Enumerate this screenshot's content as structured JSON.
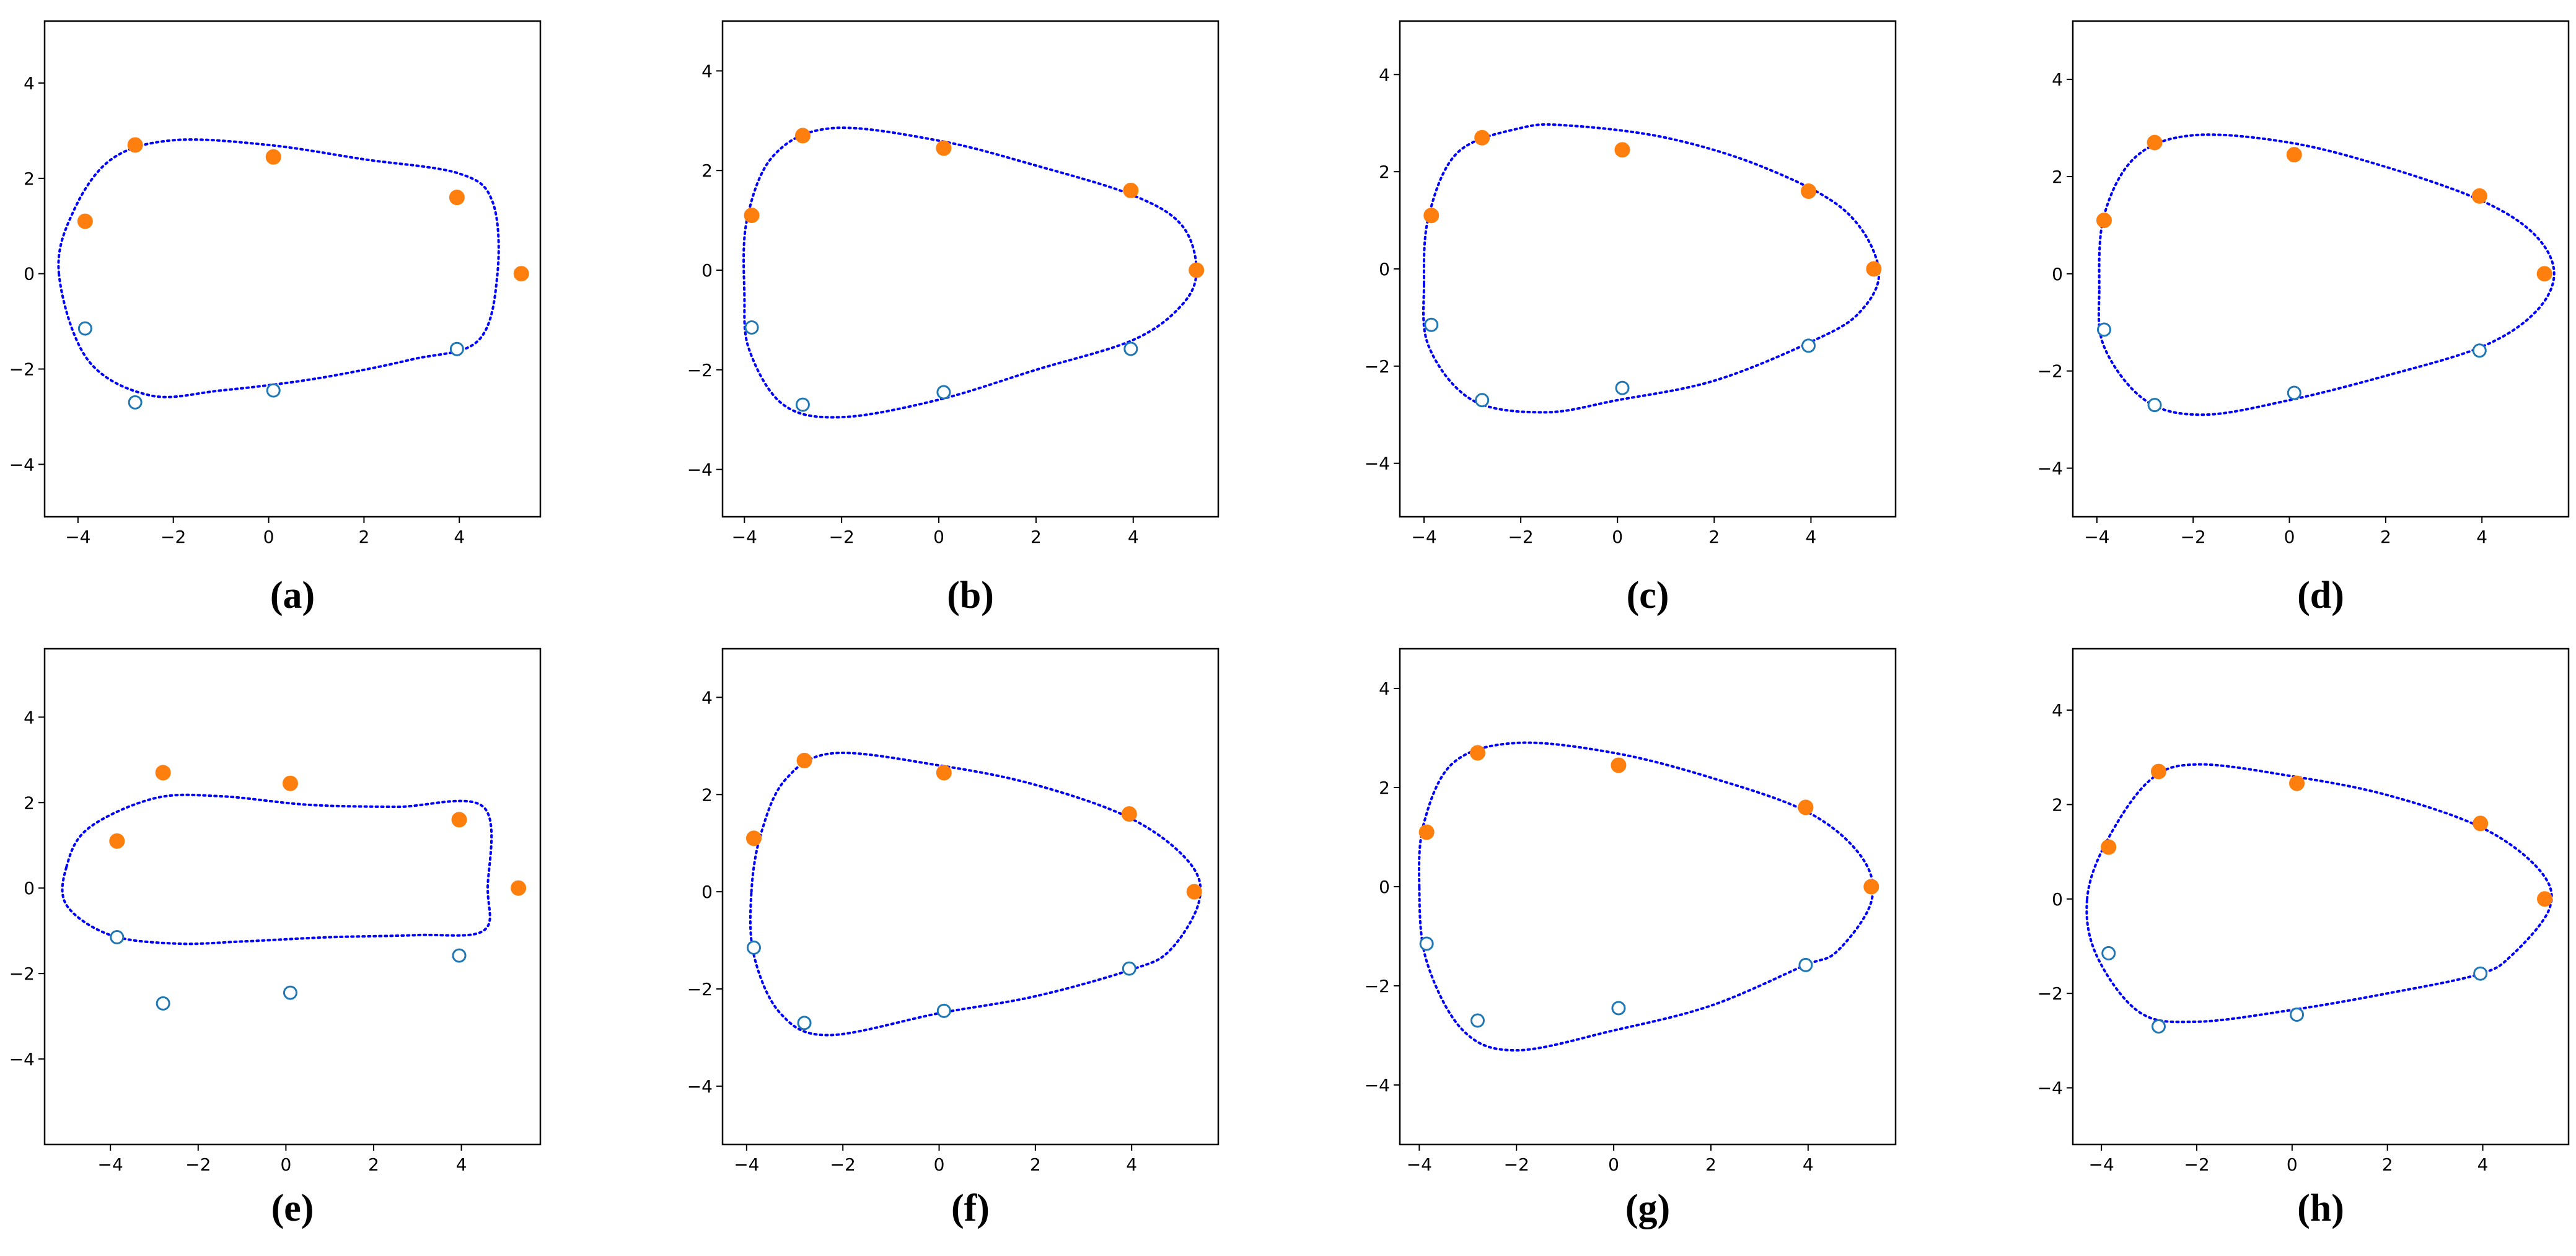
{
  "chart_data": [
    {
      "type": "scatter",
      "caption": "(a)",
      "xlim": [
        -4.7,
        5.7
      ],
      "ylim": [
        -5.1,
        5.3
      ],
      "xticks": [
        {
          "value": -4,
          "label": "−4"
        },
        {
          "value": -2,
          "label": "−2"
        },
        0,
        2,
        4
      ],
      "yticks": [
        {
          "value": -4,
          "label": "−4"
        },
        {
          "value": -2,
          "label": "−2"
        },
        0,
        2,
        4
      ],
      "series": [
        {
          "color": "#ff7f0e",
          "marker": "filled",
          "x": [
            -3.85,
            -2.8,
            0.1,
            3.95,
            5.3
          ],
          "y": [
            1.1,
            2.7,
            2.45,
            1.6,
            0
          ]
        },
        {
          "color": "#1f77b4",
          "marker": "hollow",
          "x": [
            -3.85,
            -2.8,
            0.1,
            3.95
          ],
          "y": [
            -1.15,
            -2.7,
            -2.45,
            -1.58
          ]
        },
        {
          "type": "line",
          "color": "#0000ff",
          "style": "dotted",
          "closed": true,
          "x": [
            -4.4,
            -4.1,
            -3.3,
            -2,
            0,
            2,
            4,
            4.7,
            4.8,
            4.4,
            3,
            1,
            -1,
            -2.5,
            -3.8
          ],
          "y": [
            0,
            1.3,
            2.4,
            2.8,
            2.7,
            2.4,
            2.1,
            1.5,
            0,
            -1.4,
            -1.8,
            -2.2,
            -2.45,
            -2.55,
            -1.8
          ]
        }
      ]
    },
    {
      "type": "scatter",
      "caption": "(b)",
      "xlim": [
        -4.45,
        5.75
      ],
      "ylim": [
        -4.95,
        5.0
      ],
      "xticks": [
        {
          "value": -4,
          "label": "−4"
        },
        {
          "value": -2,
          "label": "−2"
        },
        0,
        2,
        4
      ],
      "yticks": [
        {
          "value": -4,
          "label": "−4"
        },
        {
          "value": -2,
          "label": "−2"
        },
        0,
        2,
        4
      ],
      "series": [
        {
          "color": "#ff7f0e",
          "marker": "filled",
          "x": [
            -3.85,
            -2.8,
            0.1,
            3.95,
            5.3
          ],
          "y": [
            1.1,
            2.7,
            2.45,
            1.6,
            0
          ]
        },
        {
          "color": "#1f77b4",
          "marker": "hollow",
          "x": [
            -3.85,
            -2.8,
            0.1,
            3.95
          ],
          "y": [
            -1.15,
            -2.7,
            -2.45,
            -1.58
          ]
        },
        {
          "type": "line",
          "color": "#0000ff",
          "style": "dotted",
          "closed": true,
          "x": [
            -4,
            -3.95,
            -3.4,
            -2.2,
            0,
            2,
            4,
            5,
            5.3,
            5,
            4,
            2,
            0,
            -2,
            -3.2,
            -3.9
          ],
          "y": [
            -0.5,
            1,
            2.3,
            2.85,
            2.6,
            2.1,
            1.5,
            0.9,
            0,
            -0.7,
            -1.4,
            -2,
            -2.6,
            -2.95,
            -2.7,
            -1.6
          ]
        }
      ]
    },
    {
      "type": "scatter",
      "caption": "(c)",
      "xlim": [
        -4.5,
        5.75
      ],
      "ylim": [
        -5.1,
        5.1
      ],
      "xticks": [
        {
          "value": -4,
          "label": "−4"
        },
        {
          "value": -2,
          "label": "−2"
        },
        0,
        2,
        4
      ],
      "yticks": [
        {
          "value": -4,
          "label": "−4"
        },
        {
          "value": -2,
          "label": "−2"
        },
        0,
        2,
        4
      ],
      "series": [
        {
          "color": "#ff7f0e",
          "marker": "filled",
          "x": [
            -3.85,
            -2.8,
            0.1,
            3.95,
            5.3
          ],
          "y": [
            1.1,
            2.7,
            2.45,
            1.6,
            0
          ]
        },
        {
          "color": "#1f77b4",
          "marker": "hollow",
          "x": [
            -3.85,
            -2.8,
            0.1,
            3.95
          ],
          "y": [
            -1.15,
            -2.7,
            -2.45,
            -1.58
          ]
        },
        {
          "type": "line",
          "color": "#0000ff",
          "style": "dotted",
          "closed": true,
          "x": [
            -4,
            -3.9,
            -3.3,
            -2,
            -1,
            1,
            3,
            4.7,
            5.4,
            5,
            4,
            2,
            0,
            -1.5,
            -3,
            -3.9
          ],
          "y": [
            -0.3,
            1.1,
            2.4,
            2.9,
            2.95,
            2.7,
            2.1,
            1.2,
            0,
            -0.9,
            -1.5,
            -2.3,
            -2.7,
            -2.95,
            -2.7,
            -1.6
          ]
        }
      ]
    },
    {
      "type": "scatter",
      "caption": "(d)",
      "xlim": [
        -4.5,
        5.8
      ],
      "ylim": [
        -5.0,
        5.2
      ],
      "xticks": [
        {
          "value": -4,
          "label": "−4"
        },
        {
          "value": -2,
          "label": "−2"
        },
        0,
        2,
        4
      ],
      "yticks": [
        {
          "value": -4,
          "label": "−4"
        },
        {
          "value": -2,
          "label": "−2"
        },
        0,
        2,
        4
      ],
      "series": [
        {
          "color": "#ff7f0e",
          "marker": "filled",
          "x": [
            -3.85,
            -2.8,
            0.1,
            3.95,
            5.3
          ],
          "y": [
            1.1,
            2.7,
            2.45,
            1.6,
            0
          ]
        },
        {
          "color": "#1f77b4",
          "marker": "hollow",
          "x": [
            -3.85,
            -2.8,
            0.1,
            3.95
          ],
          "y": [
            -1.15,
            -2.7,
            -2.45,
            -1.58
          ]
        },
        {
          "type": "line",
          "color": "#0000ff",
          "style": "dotted",
          "closed": true,
          "x": [
            -3.95,
            -3.85,
            -3.2,
            -2,
            0,
            2,
            4,
            5.1,
            5.5,
            5.1,
            4,
            2,
            0,
            -1.8,
            -3,
            -3.85
          ],
          "y": [
            -0.3,
            1.2,
            2.4,
            2.85,
            2.7,
            2.2,
            1.5,
            0.8,
            0,
            -0.8,
            -1.5,
            -2.1,
            -2.6,
            -2.9,
            -2.6,
            -1.5
          ]
        }
      ]
    },
    {
      "type": "scatter",
      "caption": "(e)",
      "xlim": [
        -5.5,
        5.8
      ],
      "ylim": [
        -6.0,
        5.6
      ],
      "xticks": [
        {
          "value": -4,
          "label": "−4"
        },
        {
          "value": -2,
          "label": "−2"
        },
        0,
        2,
        4
      ],
      "yticks": [
        {
          "value": -4,
          "label": "−4"
        },
        {
          "value": -2,
          "label": "−2"
        },
        0,
        2,
        4
      ],
      "series": [
        {
          "color": "#ff7f0e",
          "marker": "filled",
          "x": [
            -3.85,
            -2.8,
            0.1,
            3.95,
            5.3
          ],
          "y": [
            1.1,
            2.7,
            2.45,
            1.6,
            0
          ]
        },
        {
          "color": "#1f77b4",
          "marker": "hollow",
          "x": [
            -3.85,
            -2.8,
            0.1,
            3.95
          ],
          "y": [
            -1.15,
            -2.7,
            -2.45,
            -1.58
          ]
        },
        {
          "type": "line",
          "color": "#0000ff",
          "style": "dotted",
          "closed": true,
          "x": [
            -5,
            -4.5,
            -3,
            -1.5,
            0.5,
            2.5,
            4.5,
            4.6,
            4.5,
            3,
            1,
            -1,
            -2.5,
            -4,
            -5
          ],
          "y": [
            0.5,
            1.4,
            2.1,
            2.15,
            1.95,
            1.9,
            1.9,
            0,
            -1,
            -1.1,
            -1.15,
            -1.25,
            -1.3,
            -1.1,
            -0.4
          ]
        }
      ]
    },
    {
      "type": "scatter",
      "caption": "(f)",
      "xlim": [
        -4.5,
        5.8
      ],
      "ylim": [
        -5.2,
        5.0
      ],
      "xticks": [
        {
          "value": -4,
          "label": "−4"
        },
        {
          "value": -2,
          "label": "−2"
        },
        0,
        2,
        4
      ],
      "yticks": [
        {
          "value": -4,
          "label": "−4"
        },
        {
          "value": -2,
          "label": "−2"
        },
        0,
        2,
        4
      ],
      "series": [
        {
          "color": "#ff7f0e",
          "marker": "filled",
          "x": [
            -3.85,
            -2.8,
            0.1,
            3.95,
            5.3
          ],
          "y": [
            1.1,
            2.7,
            2.45,
            1.6,
            0
          ]
        },
        {
          "color": "#1f77b4",
          "marker": "hollow",
          "x": [
            -3.85,
            -2.8,
            0.1,
            3.95
          ],
          "y": [
            -1.15,
            -2.7,
            -2.45,
            -1.58
          ]
        },
        {
          "type": "line",
          "color": "#0000ff",
          "style": "dotted",
          "closed": true,
          "x": [
            -3.9,
            -3.7,
            -3.2,
            -2.2,
            0,
            2,
            4,
            5.2,
            5.4,
            4.8,
            4,
            2,
            0,
            -2.3,
            -3.3,
            -3.85
          ],
          "y": [
            0,
            1.2,
            2.3,
            2.85,
            2.6,
            2.2,
            1.5,
            0.6,
            -0.2,
            -1.2,
            -1.6,
            -2.15,
            -2.5,
            -2.95,
            -2.5,
            -1.3
          ]
        }
      ]
    },
    {
      "type": "scatter",
      "caption": "(g)",
      "xlim": [
        -4.4,
        5.8
      ],
      "ylim": [
        -5.2,
        4.8
      ],
      "xticks": [
        {
          "value": -4,
          "label": "−4"
        },
        {
          "value": -2,
          "label": "−2"
        },
        0,
        2,
        4
      ],
      "yticks": [
        {
          "value": -4,
          "label": "−4"
        },
        {
          "value": -2,
          "label": "−2"
        },
        0,
        2,
        4
      ],
      "series": [
        {
          "color": "#ff7f0e",
          "marker": "filled",
          "x": [
            -3.85,
            -2.8,
            0.1,
            3.95,
            5.3
          ],
          "y": [
            1.1,
            2.7,
            2.45,
            1.6,
            0
          ]
        },
        {
          "color": "#1f77b4",
          "marker": "hollow",
          "x": [
            -3.85,
            -2.8,
            0.1,
            3.95
          ],
          "y": [
            -1.15,
            -2.7,
            -2.45,
            -1.58
          ]
        },
        {
          "type": "line",
          "color": "#0000ff",
          "style": "dotted",
          "closed": true,
          "x": [
            -4,
            -3.9,
            -3.3,
            -2,
            0,
            2,
            4,
            5.1,
            5.3,
            4.6,
            3.9,
            2,
            0,
            -2,
            -3.1,
            -3.85
          ],
          "y": [
            0,
            1.3,
            2.5,
            2.9,
            2.7,
            2.2,
            1.5,
            0.6,
            -0.3,
            -1.3,
            -1.6,
            -2.4,
            -2.9,
            -3.3,
            -2.9,
            -1.5
          ]
        }
      ]
    },
    {
      "type": "scatter",
      "caption": "(h)",
      "xlim": [
        -4.6,
        5.8
      ],
      "ylim": [
        -5.2,
        5.3
      ],
      "xticks": [
        {
          "value": -4,
          "label": "−4"
        },
        {
          "value": -2,
          "label": "−2"
        },
        0,
        2,
        4
      ],
      "yticks": [
        {
          "value": -4,
          "label": "−4"
        },
        {
          "value": -2,
          "label": "−2"
        },
        0,
        2,
        4
      ],
      "series": [
        {
          "color": "#ff7f0e",
          "marker": "filled",
          "x": [
            -3.85,
            -2.8,
            0.1,
            3.95,
            5.3
          ],
          "y": [
            1.1,
            2.7,
            2.45,
            1.6,
            0
          ]
        },
        {
          "color": "#1f77b4",
          "marker": "hollow",
          "x": [
            -3.85,
            -2.8,
            0.1,
            3.95
          ],
          "y": [
            -1.15,
            -2.7,
            -2.45,
            -1.58
          ]
        },
        {
          "type": "line",
          "color": "#0000ff",
          "style": "dotted",
          "closed": true,
          "x": [
            -4.3,
            -3.9,
            -3,
            -2,
            0,
            2,
            4,
            5.2,
            5.4,
            4.6,
            3.9,
            2,
            0,
            -2,
            -3.2,
            -4.1
          ],
          "y": [
            0,
            1.2,
            2.5,
            2.85,
            2.6,
            2.2,
            1.5,
            0.6,
            -0.2,
            -1.2,
            -1.6,
            -2,
            -2.35,
            -2.6,
            -2.4,
            -1.2
          ]
        }
      ]
    }
  ]
}
